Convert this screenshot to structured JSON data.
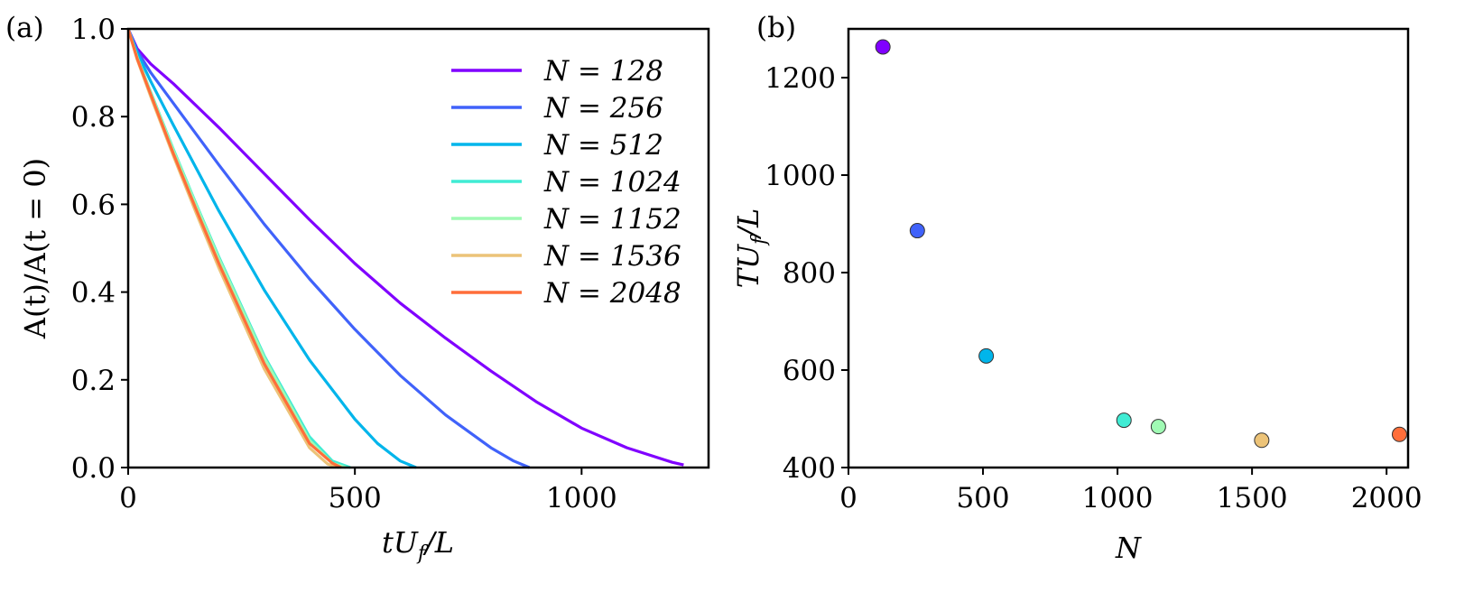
{
  "chart_data": [
    {
      "panel_label": "(a)",
      "type": "line",
      "xlabel": "tU_f/L",
      "xlabel_parts": {
        "base": "tU",
        "sub": "f",
        "rest": "/L"
      },
      "ylabel": "A(t)/A(t = 0)",
      "xlim": [
        0,
        1280
      ],
      "ylim": [
        0.0,
        1.0
      ],
      "xticks": [
        0,
        500,
        1000
      ],
      "xtick_labels": [
        "0",
        "500",
        "1000"
      ],
      "yticks": [
        0.0,
        0.2,
        0.4,
        0.6,
        0.8,
        1.0
      ],
      "ytick_labels": [
        "0.0",
        "0.2",
        "0.4",
        "0.6",
        "0.8",
        "1.0"
      ],
      "grid": false,
      "legend_position": "top-right",
      "series": [
        {
          "name": "N = 128",
          "color": "#8000ff",
          "x": [
            0,
            20,
            50,
            100,
            200,
            300,
            400,
            500,
            600,
            700,
            800,
            900,
            1000,
            1100,
            1200,
            1225
          ],
          "y": [
            1.0,
            0.955,
            0.92,
            0.875,
            0.775,
            0.67,
            0.565,
            0.465,
            0.375,
            0.295,
            0.22,
            0.15,
            0.09,
            0.045,
            0.012,
            0.006
          ]
        },
        {
          "name": "N = 256",
          "color": "#4062fa",
          "x": [
            0,
            20,
            50,
            100,
            200,
            300,
            400,
            500,
            600,
            700,
            800,
            850,
            885
          ],
          "y": [
            1.0,
            0.95,
            0.9,
            0.83,
            0.69,
            0.555,
            0.43,
            0.315,
            0.21,
            0.12,
            0.045,
            0.015,
            0.0
          ]
        },
        {
          "name": "N = 512",
          "color": "#00b5eb",
          "x": [
            0,
            20,
            50,
            100,
            200,
            300,
            400,
            500,
            550,
            600,
            635
          ],
          "y": [
            1.0,
            0.945,
            0.88,
            0.78,
            0.585,
            0.405,
            0.245,
            0.11,
            0.055,
            0.015,
            0.0
          ]
        },
        {
          "name": "N = 1024",
          "color": "#40ecd4",
          "x": [
            0,
            20,
            50,
            100,
            150,
            200,
            300,
            400,
            450,
            490
          ],
          "y": [
            1.0,
            0.935,
            0.855,
            0.725,
            0.6,
            0.48,
            0.255,
            0.07,
            0.015,
            0.0
          ]
        },
        {
          "name": "N = 1152",
          "color": "#a0fab4",
          "x": [
            0,
            20,
            50,
            100,
            150,
            200,
            300,
            400,
            450,
            480
          ],
          "y": [
            1.0,
            0.935,
            0.853,
            0.722,
            0.597,
            0.476,
            0.25,
            0.062,
            0.01,
            0.0
          ]
        },
        {
          "name": "N = 1536",
          "color": "#ecc378",
          "x": [
            0,
            20,
            50,
            100,
            150,
            200,
            300,
            400,
            440,
            465
          ],
          "y": [
            1.0,
            0.93,
            0.845,
            0.71,
            0.58,
            0.455,
            0.225,
            0.045,
            0.008,
            0.0
          ]
        },
        {
          "name": "N = 2048",
          "color": "#ff6e3a",
          "x": [
            0,
            20,
            50,
            100,
            150,
            200,
            300,
            400,
            450,
            470
          ],
          "y": [
            1.0,
            0.932,
            0.85,
            0.715,
            0.588,
            0.465,
            0.237,
            0.055,
            0.01,
            0.0
          ]
        }
      ]
    },
    {
      "panel_label": "(b)",
      "type": "scatter",
      "xlabel": "N",
      "ylabel": "TU_f/L",
      "ylabel_parts": {
        "base": "TU",
        "sub": "f",
        "rest": "/L"
      },
      "xlim": [
        0,
        2080
      ],
      "ylim": [
        400,
        1300
      ],
      "xticks": [
        0,
        500,
        1000,
        1500,
        2000
      ],
      "xtick_labels": [
        "0",
        "500",
        "1000",
        "1500",
        "2000"
      ],
      "yticks": [
        400,
        600,
        800,
        1000,
        1200
      ],
      "ytick_labels": [
        "400",
        "600",
        "800",
        "1000",
        "1200"
      ],
      "grid": false,
      "points": [
        {
          "x": 128,
          "y": 1263,
          "color": "#8000ff"
        },
        {
          "x": 256,
          "y": 886,
          "color": "#4062fa"
        },
        {
          "x": 512,
          "y": 629,
          "color": "#00b5eb"
        },
        {
          "x": 1024,
          "y": 497,
          "color": "#40ecd4"
        },
        {
          "x": 1152,
          "y": 484,
          "color": "#a0fab4"
        },
        {
          "x": 1536,
          "y": 456,
          "color": "#ecc378"
        },
        {
          "x": 2048,
          "y": 468,
          "color": "#ff6e3a"
        }
      ]
    }
  ]
}
